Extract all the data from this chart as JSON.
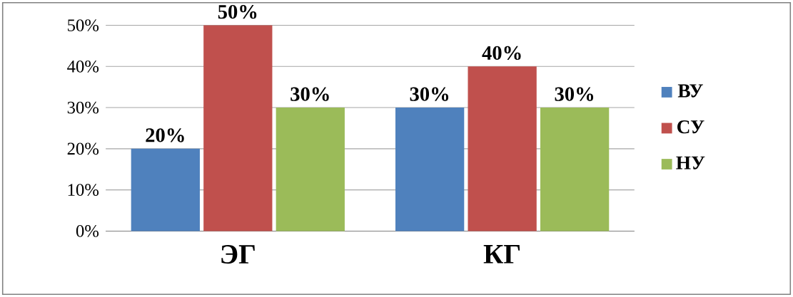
{
  "chart_data": {
    "type": "bar",
    "categories": [
      "ЭГ",
      "КГ"
    ],
    "series": [
      {
        "name": "ВУ",
        "color": "#4f81bd",
        "values": [
          20,
          30
        ],
        "value_labels": [
          "20%",
          "30%"
        ]
      },
      {
        "name": "СУ",
        "color": "#c0504d",
        "values": [
          50,
          40
        ],
        "value_labels": [
          "50%",
          "40%"
        ]
      },
      {
        "name": "НУ",
        "color": "#9bbb59",
        "values": [
          30,
          30
        ],
        "value_labels": [
          "30%",
          "30%"
        ]
      }
    ],
    "ylim": [
      0,
      50
    ],
    "yticks": [
      {
        "value": 0,
        "label": "0%"
      },
      {
        "value": 10,
        "label": "10%"
      },
      {
        "value": 20,
        "label": "20%"
      },
      {
        "value": 30,
        "label": "30%"
      },
      {
        "value": 40,
        "label": "40%"
      },
      {
        "value": 50,
        "label": "50%"
      }
    ],
    "grid": "y",
    "legend": "right"
  }
}
